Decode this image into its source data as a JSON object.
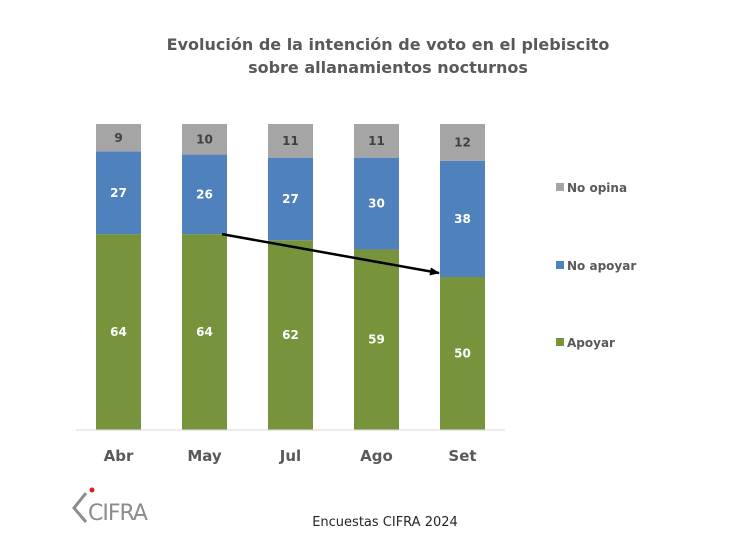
{
  "chart_data": {
    "type": "bar",
    "stacked": true,
    "title": "Evolución de la intención de voto en el plebiscito",
    "subtitle": "sobre allanamientos nocturnos",
    "categories": [
      "Abr",
      "May",
      "Jul",
      "Ago",
      "Set"
    ],
    "series": [
      {
        "name": "Apoyar",
        "color": "#77933c",
        "label_color": "#ffffff",
        "values": [
          64,
          64,
          62,
          59,
          50
        ]
      },
      {
        "name": "No apoyar",
        "color": "#4f81bd",
        "label_color": "#ffffff",
        "values": [
          27,
          26,
          27,
          30,
          38
        ]
      },
      {
        "name": "No opina",
        "color": "#a5a5a5",
        "label_color": "#404040",
        "values": [
          9,
          10,
          11,
          11,
          12
        ]
      }
    ],
    "legend_order": [
      "No opina",
      "No apoyar",
      "Apoyar"
    ],
    "legend_position": "right",
    "xlabel": "",
    "ylabel": "",
    "ylim": [
      0,
      100
    ],
    "grid": false,
    "annotation": {
      "type": "arrow",
      "from_category": "May",
      "to_category": "Set",
      "series": "Apoyar",
      "description": "Downward trend arrow on Apoyar from May to Set",
      "color": "#000000"
    }
  },
  "footer": {
    "source": "Encuestas CIFRA 2024",
    "logo_text": "CIFRA",
    "logo_dot_color": "#e31b23"
  }
}
